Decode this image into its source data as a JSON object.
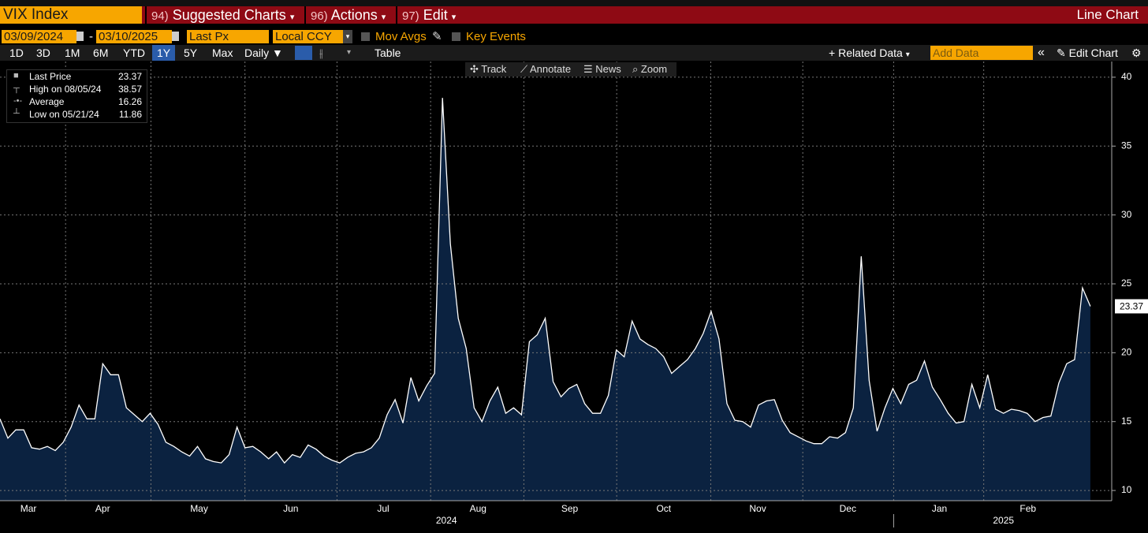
{
  "header": {
    "security": "VIX Index",
    "menus": [
      {
        "num": "94)",
        "label": "Suggested Charts"
      },
      {
        "num": "96)",
        "label": "Actions"
      },
      {
        "num": "97)",
        "label": "Edit"
      }
    ],
    "view": "Line Chart"
  },
  "controls": {
    "start_date": "03/09/2024",
    "end_date": "03/10/2025",
    "field": "Last Px",
    "currency": "Local CCY",
    "mov_avgs": "Mov Avgs",
    "key_events": "Key Events"
  },
  "toolbar": {
    "periods": [
      "1D",
      "3D",
      "1M",
      "6M",
      "YTD",
      "1Y",
      "5Y",
      "Max"
    ],
    "selected_period": "1Y",
    "frequency": "Daily",
    "table": "Table",
    "related_data": "Related Data",
    "add_data": "Add Data",
    "edit_chart": "Edit Chart"
  },
  "chart_tools": [
    "Track",
    "Annotate",
    "News",
    "Zoom"
  ],
  "legend": [
    {
      "label": "Last Price",
      "value": "23.37"
    },
    {
      "label": "High on 08/05/24",
      "value": "38.57"
    },
    {
      "label": "Average",
      "value": "16.26"
    },
    {
      "label": "Low on 05/21/24",
      "value": "11.86"
    }
  ],
  "chart_data": {
    "type": "line",
    "color": "#ffffff",
    "fill": "#0b2240",
    "values": [
      15.2,
      13.8,
      14.4,
      14.4,
      13.1,
      13.0,
      13.2,
      12.9,
      13.5,
      14.6,
      16.2,
      15.2,
      15.2,
      19.2,
      18.4,
      18.4,
      16.0,
      15.5,
      15.0,
      15.6,
      14.8,
      13.5,
      13.2,
      12.8,
      12.5,
      13.2,
      12.3,
      12.1,
      12.0,
      12.6,
      14.6,
      13.1,
      13.2,
      12.8,
      12.3,
      12.8,
      12.0,
      12.6,
      12.4,
      13.3,
      13.0,
      12.5,
      12.2,
      12.0,
      12.4,
      12.7,
      12.8,
      13.1,
      13.8,
      15.5,
      16.6,
      14.9,
      18.2,
      16.5,
      17.6,
      18.5,
      38.5,
      27.9,
      22.5,
      20.3,
      16.0,
      15.0,
      16.5,
      17.5,
      15.6,
      16.0,
      15.5,
      20.8,
      21.3,
      22.5,
      17.9,
      16.8,
      17.4,
      17.7,
      16.3,
      15.6,
      15.6,
      16.9,
      20.2,
      19.7,
      22.3,
      21.0,
      20.6,
      20.3,
      19.7,
      18.5,
      19.0,
      19.5,
      20.3,
      21.4,
      23.0,
      21.0,
      16.3,
      15.1,
      15.0,
      14.6,
      16.2,
      16.5,
      16.6,
      15.1,
      14.2,
      13.9,
      13.6,
      13.4,
      13.4,
      13.9,
      13.8,
      14.2,
      16.0,
      27.0,
      18.0,
      14.3,
      16.0,
      17.4,
      16.3,
      17.7,
      18.0,
      19.4,
      17.5,
      16.6,
      15.6,
      14.9,
      15.0,
      17.7,
      16.0,
      18.4,
      15.9,
      15.6,
      15.9,
      15.8,
      15.6,
      15.0,
      15.3,
      15.4,
      17.8,
      19.2,
      19.5,
      24.7,
      23.37
    ],
    "xlim": [
      0,
      140.7
    ],
    "xticks": [
      {
        "value": 3.6,
        "label": "Mar"
      },
      {
        "value": 13,
        "label": "Apr"
      },
      {
        "value": 25.2,
        "label": "May"
      },
      {
        "value": 36.8,
        "label": "Jun"
      },
      {
        "value": 48.5,
        "label": "Jul"
      },
      {
        "value": 60.5,
        "label": "Aug"
      },
      {
        "value": 72.1,
        "label": "Sep"
      },
      {
        "value": 84,
        "label": "Oct"
      },
      {
        "value": 95.9,
        "label": "Nov"
      },
      {
        "value": 107.3,
        "label": "Dec"
      },
      {
        "value": 118.9,
        "label": "Jan"
      },
      {
        "value": 130.1,
        "label": "Feb"
      }
    ],
    "year_labels": [
      {
        "value": 56.5,
        "label": "2024"
      },
      {
        "value": 127,
        "label": "2025"
      }
    ],
    "ylim": [
      9.26,
      41.14
    ],
    "yticks": [
      10,
      15,
      20,
      25,
      30,
      35,
      40
    ],
    "grid": true
  }
}
